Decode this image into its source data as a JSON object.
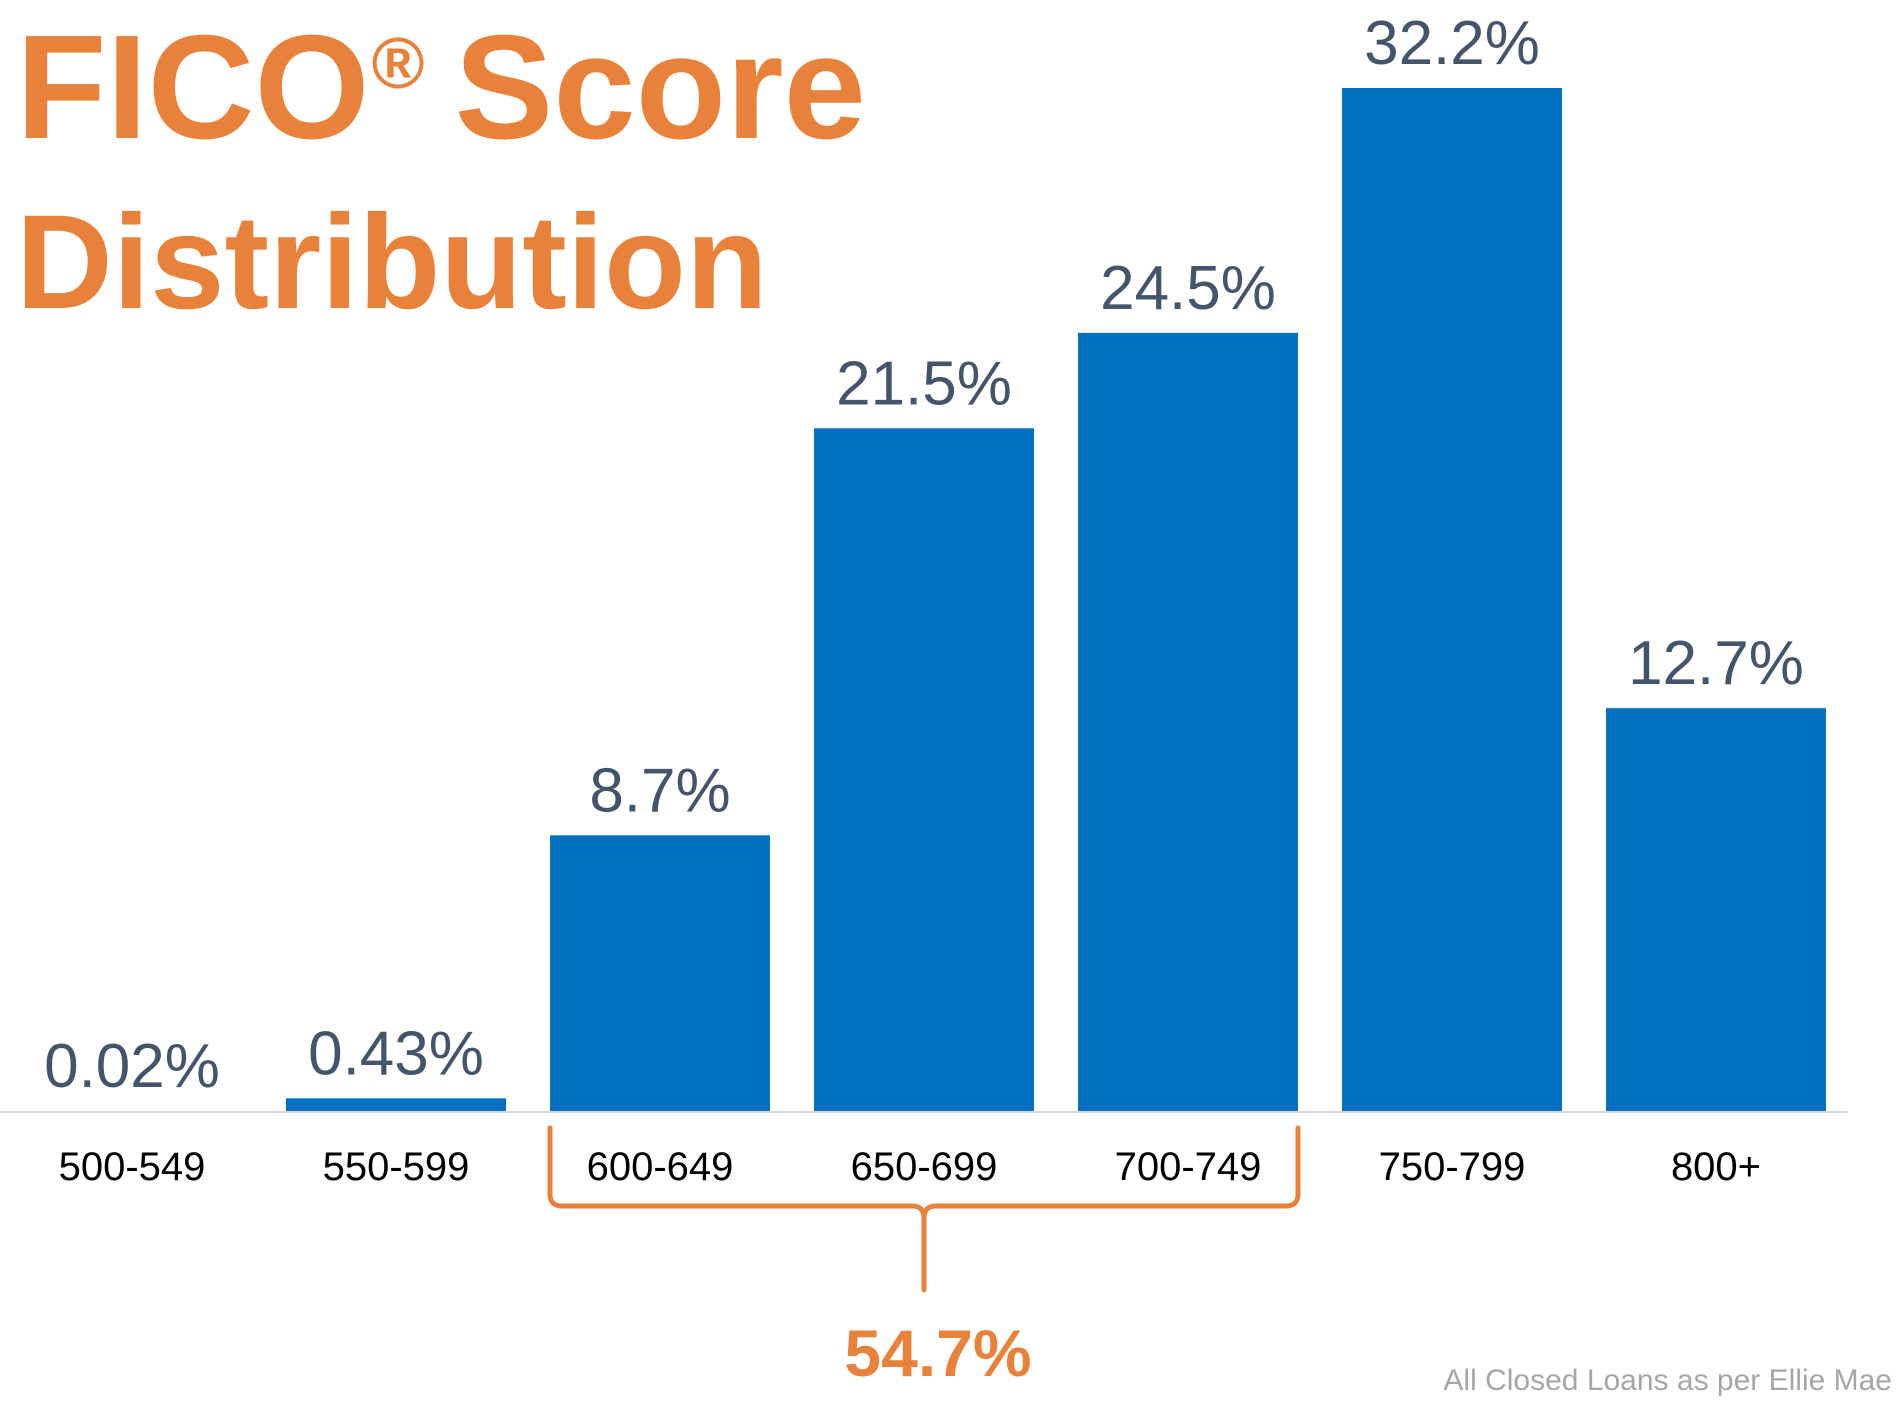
{
  "title": {
    "line1_main": "FICO",
    "line1_sup": "®",
    "line1_rest": "Score",
    "line2": "Distribution"
  },
  "chart_data": {
    "type": "bar",
    "categories": [
      "500-549",
      "550-599",
      "600-649",
      "650-699",
      "700-749",
      "750-799",
      "800+"
    ],
    "values": [
      0.02,
      0.43,
      8.7,
      21.5,
      24.5,
      32.2,
      12.7
    ],
    "data_labels": [
      "0.02%",
      "0.43%",
      "8.7%",
      "21.5%",
      "24.5%",
      "32.2%",
      "12.7%"
    ],
    "ylim": [
      0,
      32.2
    ],
    "grid": false,
    "bar_color": "#0070C0",
    "label_color": "#44546A",
    "annotation": {
      "bracket_from": "600-649",
      "bracket_to": "700-749",
      "label": "54.7%",
      "color": "#E8823A"
    }
  },
  "footnote": "All Closed Loans as per Ellie Mae",
  "colors": {
    "accent": "#E8823A",
    "bar": "#0070C0",
    "axis": "#D9D9D9"
  }
}
